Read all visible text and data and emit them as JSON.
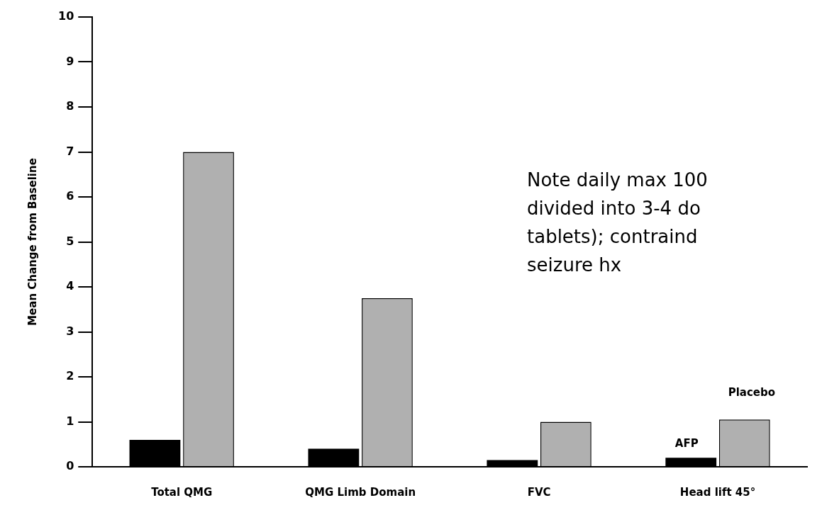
{
  "chart_data": {
    "type": "bar",
    "ylabel": "Mean Change from Baseline",
    "categories": [
      "Total QMG",
      "QMG Limb Domain",
      "FVC",
      "Head lift 45°"
    ],
    "series": [
      {
        "name": "AFP",
        "color": "#000000",
        "values": [
          0.6,
          0.4,
          0.15,
          0.2
        ]
      },
      {
        "name": "Placebo",
        "color": "#b0b0b0",
        "values": [
          7.0,
          3.75,
          1.0,
          1.05
        ]
      }
    ],
    "ylim": [
      0,
      10
    ],
    "yticks": [
      0,
      1,
      2,
      3,
      4,
      5,
      6,
      7,
      8,
      9,
      10
    ],
    "grid": false,
    "legend": false,
    "annotations": [
      "Note daily max 100",
      "divided into 3-4 do",
      "tablets); contraind",
      "seizure hx"
    ]
  }
}
